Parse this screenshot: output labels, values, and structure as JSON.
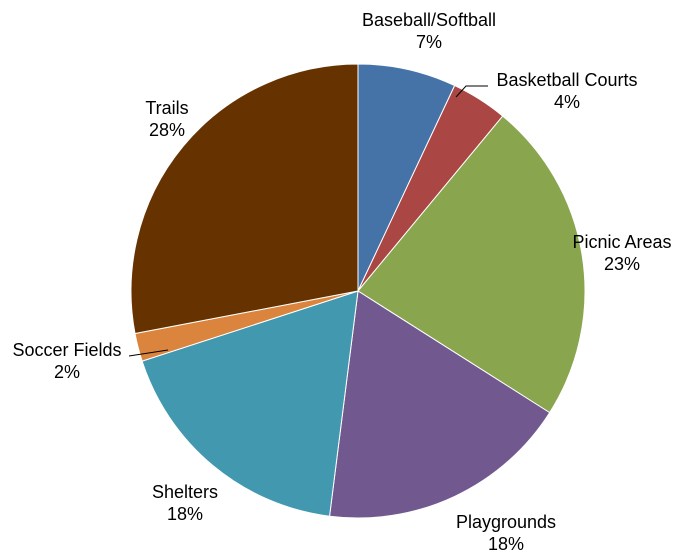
{
  "chart_data": {
    "type": "pie",
    "start_angle_deg": 0,
    "direction": "clockwise",
    "slices": [
      {
        "label": "Baseball/Softball",
        "value": 7,
        "value_label": "7%",
        "color": "#4572A7"
      },
      {
        "label": "Basketball Courts",
        "value": 4,
        "value_label": "4%",
        "color": "#AA4643"
      },
      {
        "label": "Picnic Areas",
        "value": 23,
        "value_label": "23%",
        "color": "#89A54E"
      },
      {
        "label": "Playgrounds",
        "value": 18,
        "value_label": "18%",
        "color": "#71588F"
      },
      {
        "label": "Shelters",
        "value": 18,
        "value_label": "18%",
        "color": "#4198AF"
      },
      {
        "label": "Soccer Fields",
        "value": 2,
        "value_label": "2%",
        "color": "#DB843D"
      },
      {
        "label": "Trails",
        "value": 28,
        "value_label": "28%",
        "color": "#663300"
      }
    ]
  }
}
